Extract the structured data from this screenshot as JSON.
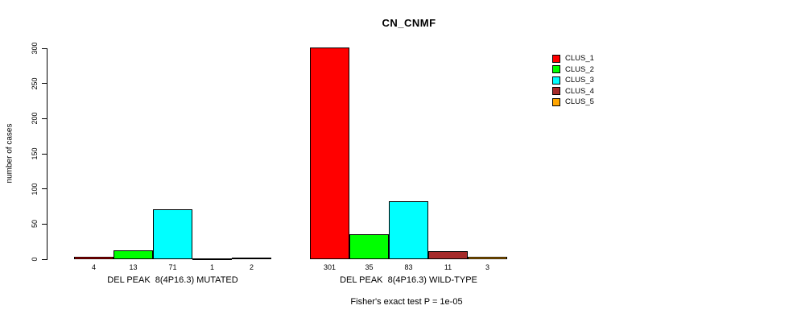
{
  "chart_data": {
    "type": "bar",
    "title": "CN_CNMF",
    "ylabel": "number of cases",
    "footer": "Fisher's exact test P = 1e-05",
    "ylim": [
      0,
      300
    ],
    "yticks": [
      0,
      50,
      100,
      150,
      200,
      250,
      300
    ],
    "grid": false,
    "legend_position": "right",
    "categories": [
      "DEL PEAK  8(4P16.3) MUTATED",
      "DEL PEAK  8(4P16.3) WILD-TYPE"
    ],
    "series": [
      {
        "name": "CLUS_1",
        "color": "#FF0000",
        "values": [
          4,
          301
        ]
      },
      {
        "name": "CLUS_2",
        "color": "#00FF00",
        "values": [
          13,
          35
        ]
      },
      {
        "name": "CLUS_3",
        "color": "#00FFFF",
        "values": [
          71,
          83
        ]
      },
      {
        "name": "CLUS_4",
        "color": "#A52A2A",
        "values": [
          1,
          11
        ]
      },
      {
        "name": "CLUS_5",
        "color": "#FFA500",
        "values": [
          2,
          3
        ]
      }
    ]
  }
}
